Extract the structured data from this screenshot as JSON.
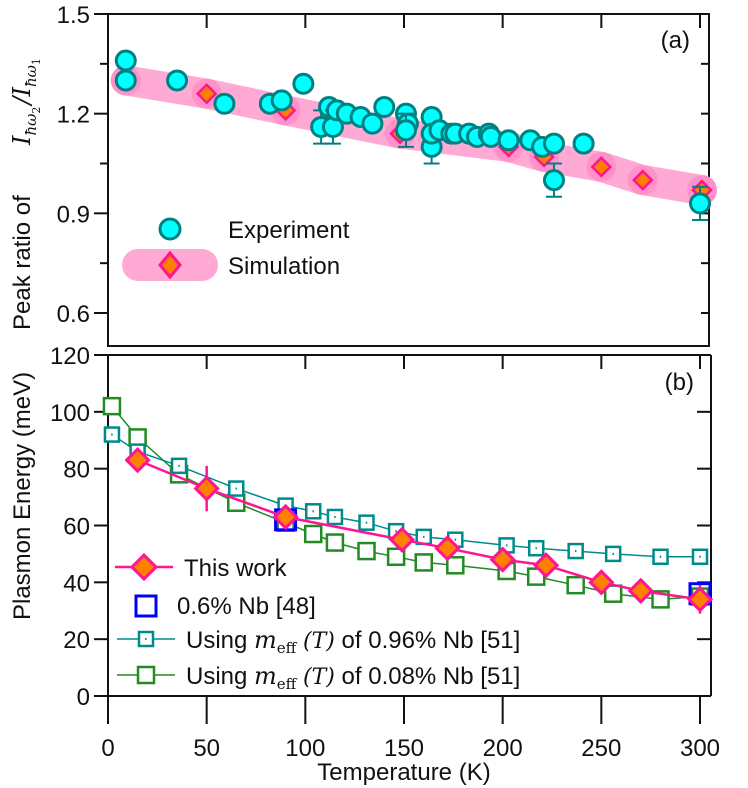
{
  "chart_data": [
    {
      "panel": "a",
      "panel_label": "(a)",
      "type": "scatter",
      "xlabel": "",
      "ylabel_prefix": "Peak ratio of",
      "ylabel_math": "I_{ħω2}/I_{ħω1}",
      "xlim": [
        0,
        310
      ],
      "ylim": [
        0.5,
        1.5
      ],
      "x_ticks": [
        0,
        50,
        100,
        150,
        200,
        250,
        300
      ],
      "y_ticks": [
        0.6,
        0.9,
        1.2,
        1.5
      ],
      "y_tick_labels": [
        "0.6",
        "0.9",
        "1.2",
        "1.5"
      ],
      "legend_position": "center-left",
      "series": [
        {
          "name": "Experiment",
          "marker": "circle",
          "fill": "#00FFFF",
          "stroke": "#008080",
          "points": [
            {
              "x": 9,
              "y": 1.36
            },
            {
              "x": 9,
              "y": 1.3
            },
            {
              "x": 35,
              "y": 1.3
            },
            {
              "x": 59,
              "y": 1.23
            },
            {
              "x": 82,
              "y": 1.23
            },
            {
              "x": 88,
              "y": 1.24
            },
            {
              "x": 99,
              "y": 1.29
            },
            {
              "x": 108,
              "y": 1.16,
              "err": 0.05
            },
            {
              "x": 112,
              "y": 1.22
            },
            {
              "x": 114,
              "y": 1.16,
              "err": 0.05
            },
            {
              "x": 116,
              "y": 1.21
            },
            {
              "x": 121,
              "y": 1.2
            },
            {
              "x": 128,
              "y": 1.19
            },
            {
              "x": 134,
              "y": 1.17
            },
            {
              "x": 140,
              "y": 1.22
            },
            {
              "x": 151,
              "y": 1.2
            },
            {
              "x": 152,
              "y": 1.17
            },
            {
              "x": 151,
              "y": 1.15,
              "err": 0.05
            },
            {
              "x": 164,
              "y": 1.19
            },
            {
              "x": 164,
              "y": 1.1,
              "err": 0.05
            },
            {
              "x": 164,
              "y": 1.14
            },
            {
              "x": 168,
              "y": 1.15
            },
            {
              "x": 174,
              "y": 1.14
            },
            {
              "x": 176,
              "y": 1.14
            },
            {
              "x": 183,
              "y": 1.14
            },
            {
              "x": 187,
              "y": 1.13
            },
            {
              "x": 193,
              "y": 1.14
            },
            {
              "x": 194,
              "y": 1.13
            },
            {
              "x": 203,
              "y": 1.12
            },
            {
              "x": 214,
              "y": 1.12
            },
            {
              "x": 220,
              "y": 1.1
            },
            {
              "x": 226,
              "y": 1.11
            },
            {
              "x": 226,
              "y": 1.0,
              "err": 0.05
            },
            {
              "x": 241,
              "y": 1.11
            },
            {
              "x": 300,
              "y": 0.93,
              "err": 0.05
            }
          ]
        },
        {
          "name": "Simulation",
          "marker": "diamond",
          "fill": "#FF7F00",
          "stroke": "#FF1493",
          "band_color": "#FFAAD4",
          "points": [
            {
              "x": 9,
              "y": 1.3
            },
            {
              "x": 50,
              "y": 1.26
            },
            {
              "x": 90,
              "y": 1.21
            },
            {
              "x": 148,
              "y": 1.14
            },
            {
              "x": 203,
              "y": 1.1
            },
            {
              "x": 221,
              "y": 1.07
            },
            {
              "x": 250,
              "y": 1.04
            },
            {
              "x": 271,
              "y": 1.0
            },
            {
              "x": 301,
              "y": 0.97
            }
          ]
        }
      ]
    },
    {
      "panel": "b",
      "panel_label": "(b)",
      "type": "line",
      "xlabel": "Temperature (K)",
      "ylabel": "Plasmon Energy (meV)",
      "xlim": [
        0,
        310
      ],
      "ylim": [
        0,
        120
      ],
      "x_ticks": [
        0,
        50,
        100,
        150,
        200,
        250,
        300
      ],
      "x_tick_labels": [
        "0",
        "50",
        "100",
        "150",
        "200",
        "250",
        "300"
      ],
      "y_ticks": [
        0,
        20,
        40,
        60,
        80,
        100,
        120
      ],
      "y_tick_labels": [
        "0",
        "20",
        "40",
        "60",
        "80",
        "100",
        "120"
      ],
      "legend_position": "bottom-left",
      "series": [
        {
          "name": "This work",
          "legend_label": "This work",
          "marker": "diamond",
          "line": true,
          "color": "#FF1493",
          "fill": "#FF7F00",
          "points": [
            {
              "x": 15,
              "y": 83,
              "err": 4
            },
            {
              "x": 50,
              "y": 73,
              "err": 8
            },
            {
              "x": 90,
              "y": 63,
              "err": 4
            },
            {
              "x": 149,
              "y": 55,
              "err": 3
            },
            {
              "x": 172,
              "y": 52,
              "err": 3
            },
            {
              "x": 200,
              "y": 48,
              "err": 4
            },
            {
              "x": 222,
              "y": 46,
              "err": 3
            },
            {
              "x": 250,
              "y": 40,
              "err": 4
            },
            {
              "x": 270,
              "y": 37,
              "err": 4
            },
            {
              "x": 300,
              "y": 34,
              "err": 5
            }
          ]
        },
        {
          "name": "0.6% Nb [48]",
          "legend_label": "0.6% Nb [48]",
          "marker": "square",
          "line": false,
          "color": "#0000FF",
          "points": [
            {
              "x": 90,
              "y": 62
            },
            {
              "x": 300,
              "y": 36
            }
          ]
        },
        {
          "name": "Using m_eff(T) of 0.96% Nb [51]",
          "legend_prefix": "Using",
          "legend_math": "m",
          "legend_sub": "eff",
          "legend_math2": "(T)",
          "legend_suffix": "of 0.96% Nb [51]",
          "marker": "square-dot",
          "line": true,
          "color": "#008B8B",
          "points": [
            {
              "x": 2,
              "y": 92
            },
            {
              "x": 15,
              "y": 86
            },
            {
              "x": 36,
              "y": 81
            },
            {
              "x": 65,
              "y": 73
            },
            {
              "x": 90,
              "y": 67
            },
            {
              "x": 104,
              "y": 65
            },
            {
              "x": 115,
              "y": 63
            },
            {
              "x": 131,
              "y": 61
            },
            {
              "x": 146,
              "y": 58
            },
            {
              "x": 160,
              "y": 56
            },
            {
              "x": 176,
              "y": 55
            },
            {
              "x": 202,
              "y": 53
            },
            {
              "x": 217,
              "y": 52
            },
            {
              "x": 237,
              "y": 51
            },
            {
              "x": 256,
              "y": 50
            },
            {
              "x": 280,
              "y": 49
            },
            {
              "x": 300,
              "y": 49
            }
          ]
        },
        {
          "name": "Using m_eff(T) of 0.08% Nb [51]",
          "legend_prefix": "Using",
          "legend_math": "m",
          "legend_sub": "eff",
          "legend_math2": "(T)",
          "legend_suffix": "of 0.08% Nb [51]",
          "marker": "square",
          "line": true,
          "color": "#228B22",
          "points": [
            {
              "x": 2,
              "y": 102
            },
            {
              "x": 15,
              "y": 91
            },
            {
              "x": 36,
              "y": 78
            },
            {
              "x": 65,
              "y": 68
            },
            {
              "x": 90,
              "y": 61
            },
            {
              "x": 104,
              "y": 57
            },
            {
              "x": 115,
              "y": 54
            },
            {
              "x": 131,
              "y": 51
            },
            {
              "x": 146,
              "y": 49
            },
            {
              "x": 160,
              "y": 47
            },
            {
              "x": 176,
              "y": 46
            },
            {
              "x": 202,
              "y": 44
            },
            {
              "x": 217,
              "y": 42
            },
            {
              "x": 237,
              "y": 39
            },
            {
              "x": 256,
              "y": 36
            },
            {
              "x": 280,
              "y": 34
            },
            {
              "x": 300,
              "y": 35
            }
          ]
        }
      ]
    }
  ]
}
